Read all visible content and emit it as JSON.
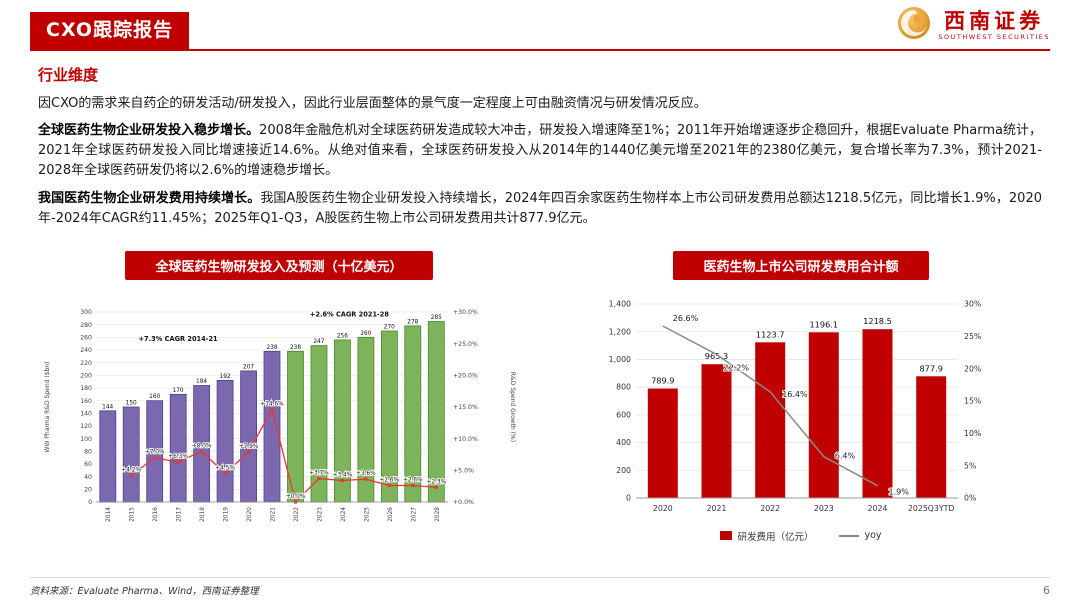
{
  "page": {
    "title": "CXO跟踪报告",
    "page_number": "6",
    "source_note": "资料来源：Evaluate Pharma、Wind，西南证券整理"
  },
  "logo": {
    "name_cn": "西南证券",
    "name_en": "SOUTHWEST SECURITIES",
    "brand_red": "#c00000",
    "brand_gold": "#e8a33d"
  },
  "section": {
    "heading": "行业维度",
    "para1": "因CXO的需求来自药企的研发活动/研发投入，因此行业层面整体的景气度一定程度上可由融资情况与研发情况反应。",
    "para2_lead": "全球医药生物企业研发投入稳步增长。",
    "para2_body": "2008年金融危机对全球医药研发造成较大冲击，研发投入增速降至1%；2011年开始增速逐步企稳回升，根据Evaluate Pharma统计，2021年全球医药研发投入同比增速接近14.6%。从绝对值来看，全球医药研发投入从2014年的1440亿美元增至2021年的2380亿美元，复合增长率为7.3%，预计2021-2028年全球医药研发仍将以2.6%的增速稳步增长。",
    "para3_lead": "我国医药生物企业研发费用持续增长。",
    "para3_body": "我国A股医药生物企业研发投入持续增长，2024年四百余家医药生物样本上市公司研发费用总额达1218.5亿元，同比增长1.9%，2020年-2024年CAGR约11.45%；2025年Q1-Q3，A股医药生物上市公司研发费用共计877.9亿元。"
  },
  "chart_data": [
    {
      "type": "bar",
      "title": "全球医药生物研发投入及预测（十亿美元）",
      "categories": [
        "2014",
        "2015",
        "2016",
        "2017",
        "2018",
        "2019",
        "2020",
        "2021",
        "2022",
        "2023",
        "2024",
        "2025",
        "2026",
        "2027",
        "2028"
      ],
      "series": [
        {
          "name": "WW Pharma R&D Spend ($bn)",
          "type": "bar",
          "values": [
            144,
            150,
            160,
            170,
            184,
            192,
            207,
            238,
            238,
            247,
            256,
            260,
            270,
            278,
            285
          ],
          "color_actual": "#7b68ae",
          "border_actual": "#503f90",
          "color_forecast": "#7cb35b",
          "border_forecast": "#4a8a2e",
          "forecast_from_index": 8
        },
        {
          "name": "R&D Spend Growth (%)",
          "type": "line",
          "color": "#e8392e",
          "values": [
            null,
            4.2,
            7.0,
            6.3,
            8.0,
            4.5,
            7.9,
            14.6,
            0.0,
            3.7,
            3.4,
            3.6,
            2.6,
            2.6,
            2.3
          ],
          "labels": [
            "",
            "+4.2%",
            "+7.0%",
            "+6.3%",
            "+8.0%",
            "+4.5%",
            "+7.9%",
            "+14.6%",
            "+0.0%",
            "+3.7%",
            "+3.4%",
            "+3.6%",
            "+2.6%",
            "+2.6%",
            "+2.3%"
          ]
        }
      ],
      "ylabel_left": "WW Pharma R&D Spend ($bn)",
      "ylabel_right": "R&D Spend Growth (%)",
      "ylim_left": [
        0,
        300
      ],
      "ytick_step_left": 20,
      "ylim_right": [
        0,
        30
      ],
      "ytick_step_right": 5,
      "grid": true,
      "annotations": [
        {
          "text": "+7.3% CAGR 2014-21",
          "index": 3.0,
          "value": 254
        },
        {
          "text": "+2.6% CAGR 2021-28",
          "index": 10.3,
          "value": 293
        }
      ]
    },
    {
      "type": "bar",
      "title": "医药生物上市公司研发费用合计额",
      "categories": [
        "2020",
        "2021",
        "2022",
        "2023",
        "2024",
        "2025Q3YTD"
      ],
      "series": [
        {
          "name": "研发费用（亿元）",
          "type": "bar",
          "color": "#c00000",
          "values": [
            789.9,
            965.3,
            1123.7,
            1196.1,
            1218.5,
            877.9
          ]
        },
        {
          "name": "yoy",
          "type": "line",
          "color": "#8a8a8a",
          "values": [
            26.6,
            22.2,
            16.4,
            6.4,
            1.9,
            null
          ],
          "labels": [
            "26.6%",
            "22.2%",
            "16.4%",
            "6.4%",
            "1.9%",
            ""
          ]
        }
      ],
      "ylim_left": [
        0,
        1400
      ],
      "ytick_step_left": 200,
      "ylim_right": [
        0,
        30
      ],
      "yticks_right": [
        "0%",
        "5%",
        "10%",
        "15%",
        "20%",
        "25%",
        "30%"
      ],
      "grid": true,
      "legend_position": "bottom"
    }
  ]
}
